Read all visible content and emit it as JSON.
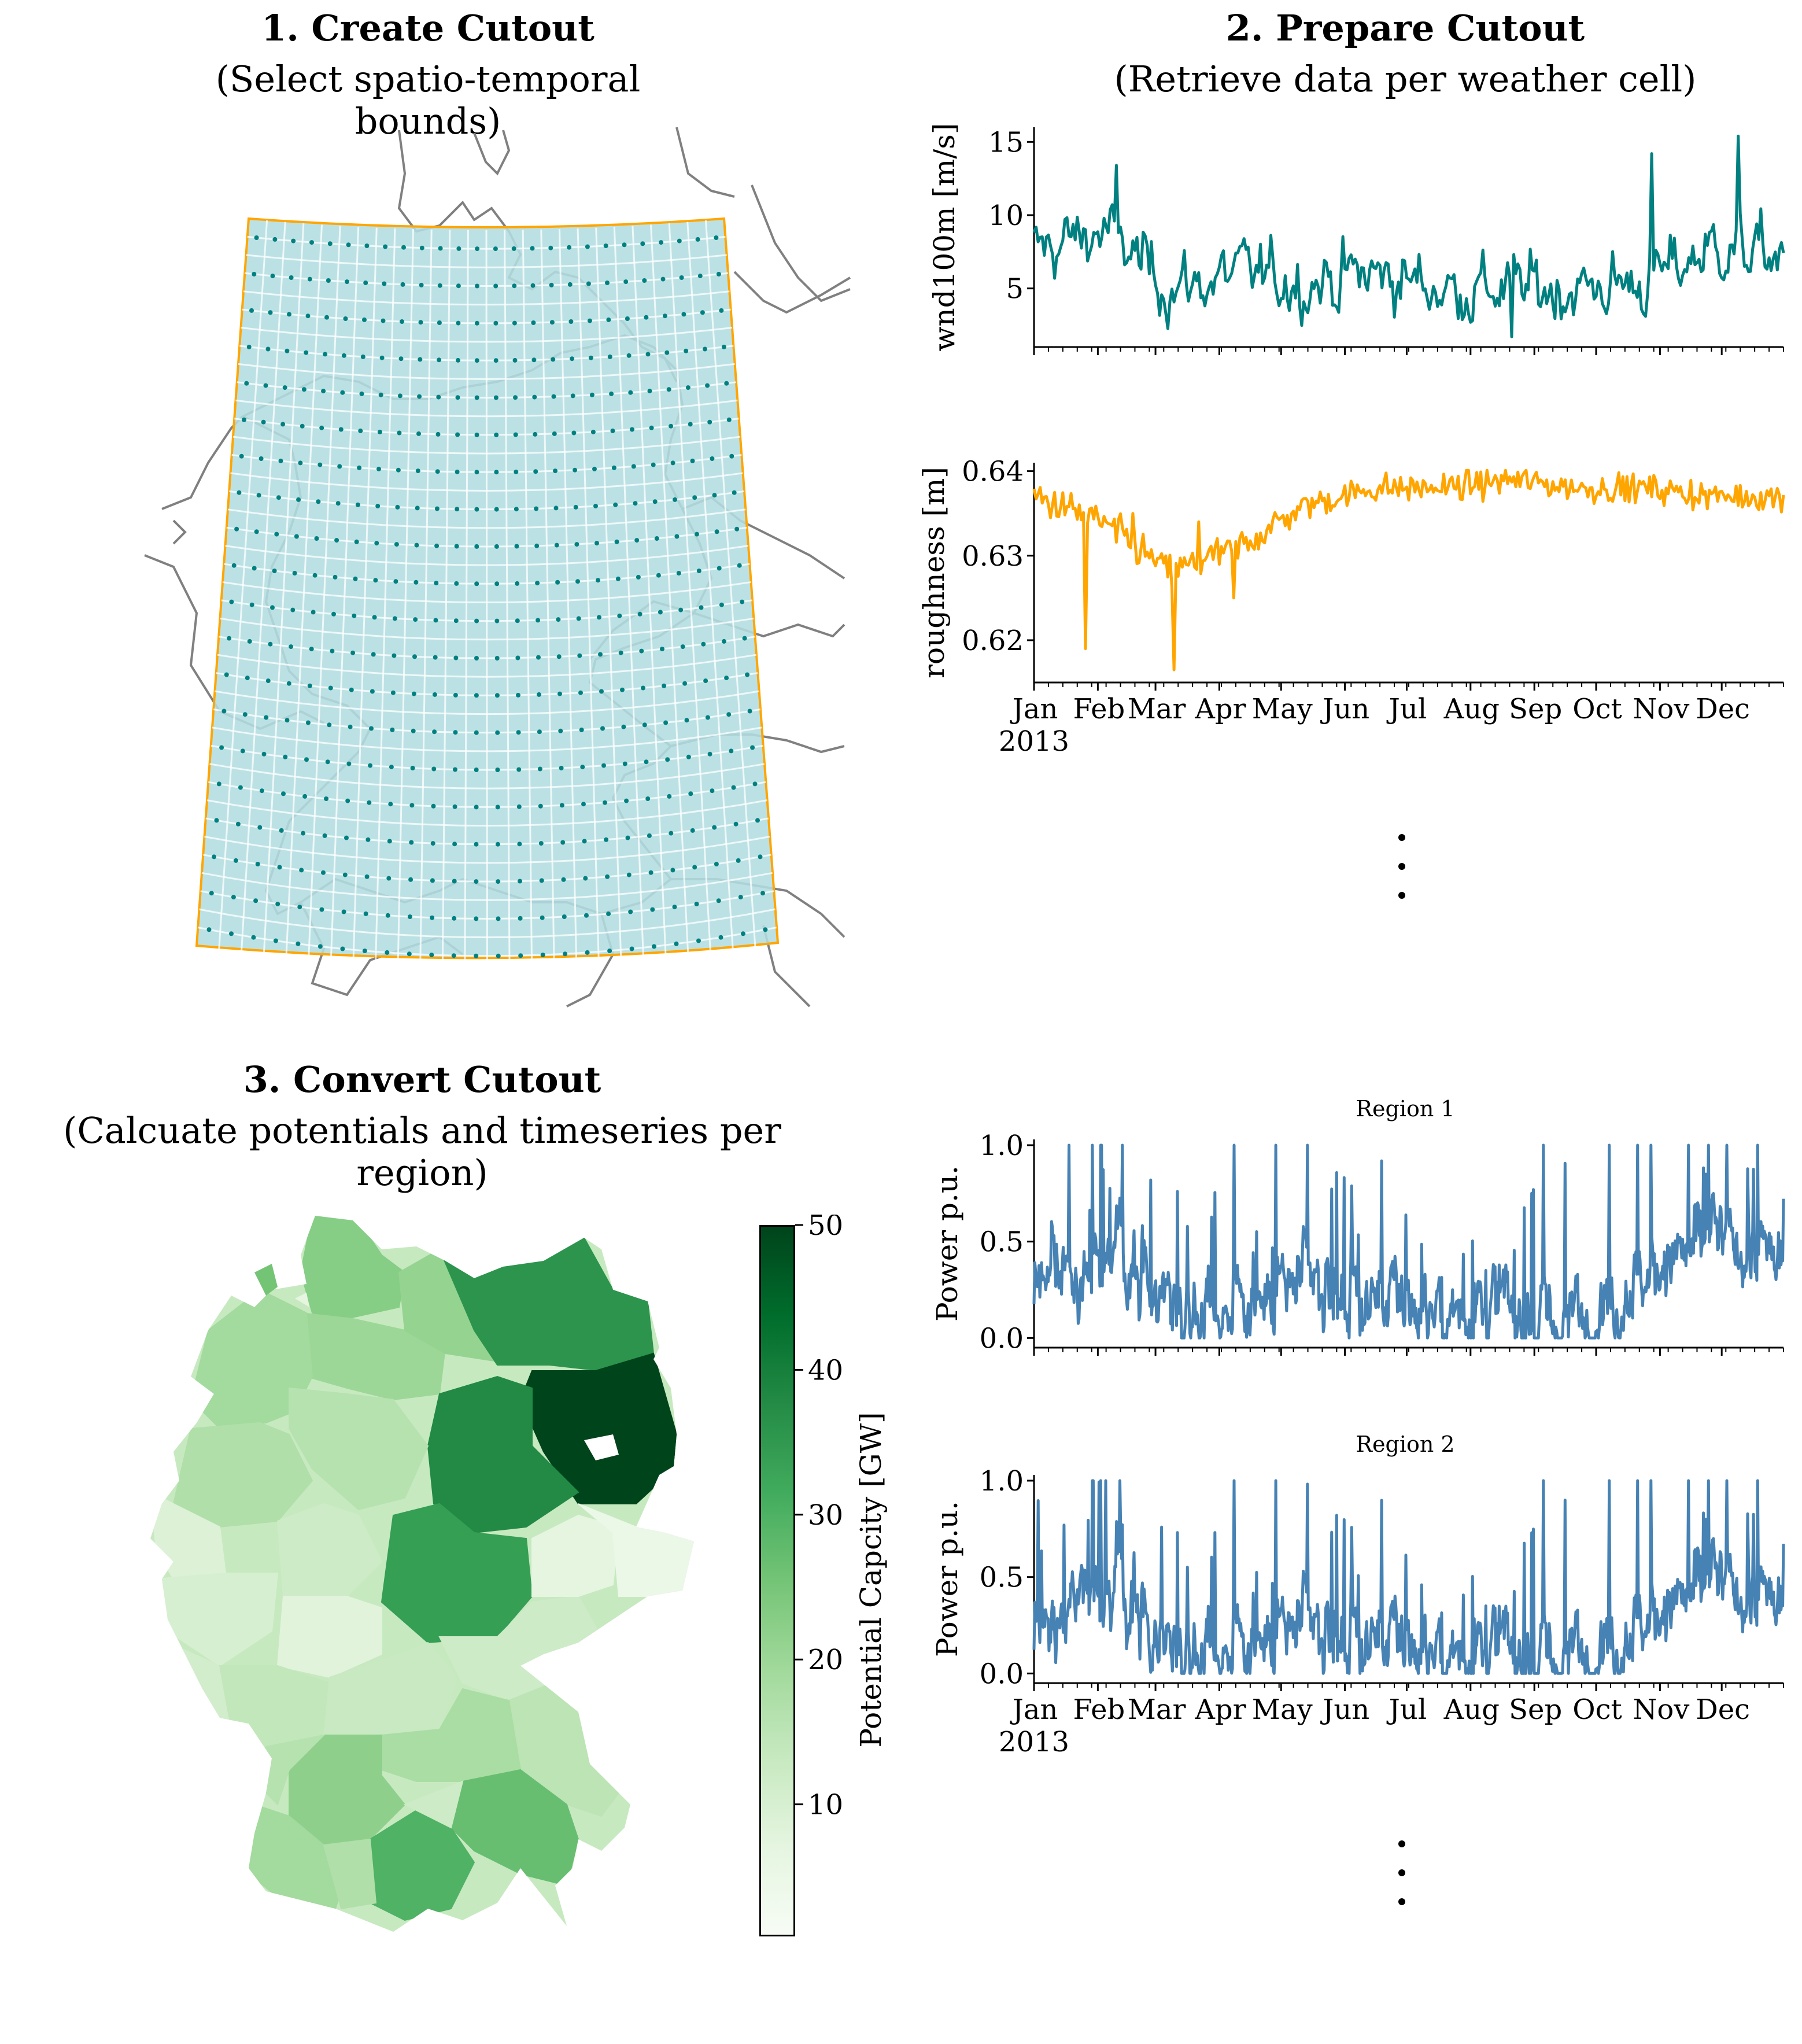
{
  "panels": {
    "p1": {
      "title": "1. Create Cutout",
      "subtitle": "(Select spatio-temporal bounds)"
    },
    "p2": {
      "title": "2. Prepare Cutout",
      "subtitle": "(Retrieve data per weather cell)"
    },
    "p3": {
      "title": "3. Convert Cutout",
      "subtitle": "(Calcuate potentials and timeseries per region)"
    }
  },
  "colors": {
    "wind": "#008080",
    "roughness": "#ffa500",
    "power": "#4682b4",
    "cutout_fill": "#b3dde0",
    "cutout_edge": "#ffa500",
    "grid_points": "#008080",
    "borders": "#808080",
    "colormap": "Greens"
  },
  "month_ticks": [
    "Jan",
    "Feb",
    "Mar",
    "Apr",
    "May",
    "Jun",
    "Jul",
    "Aug",
    "Sep",
    "Oct",
    "Nov",
    "Dec"
  ],
  "year_label": "2013",
  "chart_data": [
    {
      "type": "line",
      "id": "wind",
      "ylabel": "wnd100m [m/s]",
      "ylim": [
        1,
        16
      ],
      "yticks": [
        5,
        10,
        15
      ],
      "x_range": [
        "2013-01-01",
        "2013-12-31"
      ],
      "series": [
        {
          "values_sampled_monthly_approx": [
            7.5,
            9,
            5,
            6,
            5.5,
            6,
            5,
            5,
            5,
            5.5,
            8,
            7
          ]
        }
      ],
      "peaks": {
        "max": 15.4,
        "min": 1.7
      }
    },
    {
      "type": "line",
      "id": "roughness",
      "ylabel": "roughness [m]",
      "ylim": [
        0.615,
        0.641
      ],
      "yticks": [
        0.62,
        0.63,
        0.64
      ],
      "yticklabels": [
        "0.62",
        "0.63",
        "0.64"
      ],
      "x_range": [
        "2013-01-01",
        "2013-12-31"
      ],
      "series": [
        {
          "values_sampled_monthly_approx": [
            0.637,
            0.634,
            0.628,
            0.631,
            0.636,
            0.638,
            0.638,
            0.639,
            0.638,
            0.638,
            0.637,
            0.637
          ]
        }
      ],
      "peaks": {
        "max": 0.6401,
        "min": 0.6165
      }
    },
    {
      "type": "line",
      "id": "region1",
      "title": "Region 1",
      "ylabel": "Power p.u.",
      "ylim": [
        -0.05,
        1.03
      ],
      "yticks": [
        0.0,
        0.5,
        1.0
      ],
      "yticklabels": [
        "0.0",
        "0.5",
        "1.0"
      ],
      "x_range": [
        "2013-01-01",
        "2013-12-31"
      ],
      "series": [
        {
          "values_sampled_monthly_approx": [
            0.3,
            0.5,
            0.15,
            0.2,
            0.25,
            0.2,
            0.15,
            0.15,
            0.1,
            0.35,
            0.5,
            0.4
          ]
        }
      ],
      "peaks": {
        "max": 1.0,
        "min": 0.0
      }
    },
    {
      "type": "line",
      "id": "region2",
      "title": "Region 2",
      "ylabel": "Power p.u.",
      "ylim": [
        -0.05,
        1.03
      ],
      "yticks": [
        0.0,
        0.5,
        1.0
      ],
      "yticklabels": [
        "0.0",
        "0.5",
        "1.0"
      ],
      "x_range": [
        "2013-01-01",
        "2013-12-31"
      ],
      "series": [
        {
          "values_sampled_monthly_approx": [
            0.25,
            0.45,
            0.12,
            0.18,
            0.2,
            0.18,
            0.12,
            0.12,
            0.1,
            0.3,
            0.45,
            0.35
          ]
        }
      ],
      "peaks": {
        "max": 1.0,
        "min": 0.0
      }
    },
    {
      "type": "heatmap",
      "id": "potentials",
      "colorbar_label": "Potential Capcity [GW]",
      "colorbar_range": [
        1,
        50
      ],
      "colorbar_ticks": [
        10,
        20,
        30,
        40,
        50
      ],
      "region_values_GW": [
        23,
        20,
        21,
        36,
        50,
        38,
        34,
        19,
        16,
        17,
        9,
        10,
        12,
        8,
        11,
        14,
        13,
        12,
        7,
        5,
        15,
        18,
        22,
        27,
        30,
        19,
        17,
        16,
        12
      ]
    }
  ]
}
